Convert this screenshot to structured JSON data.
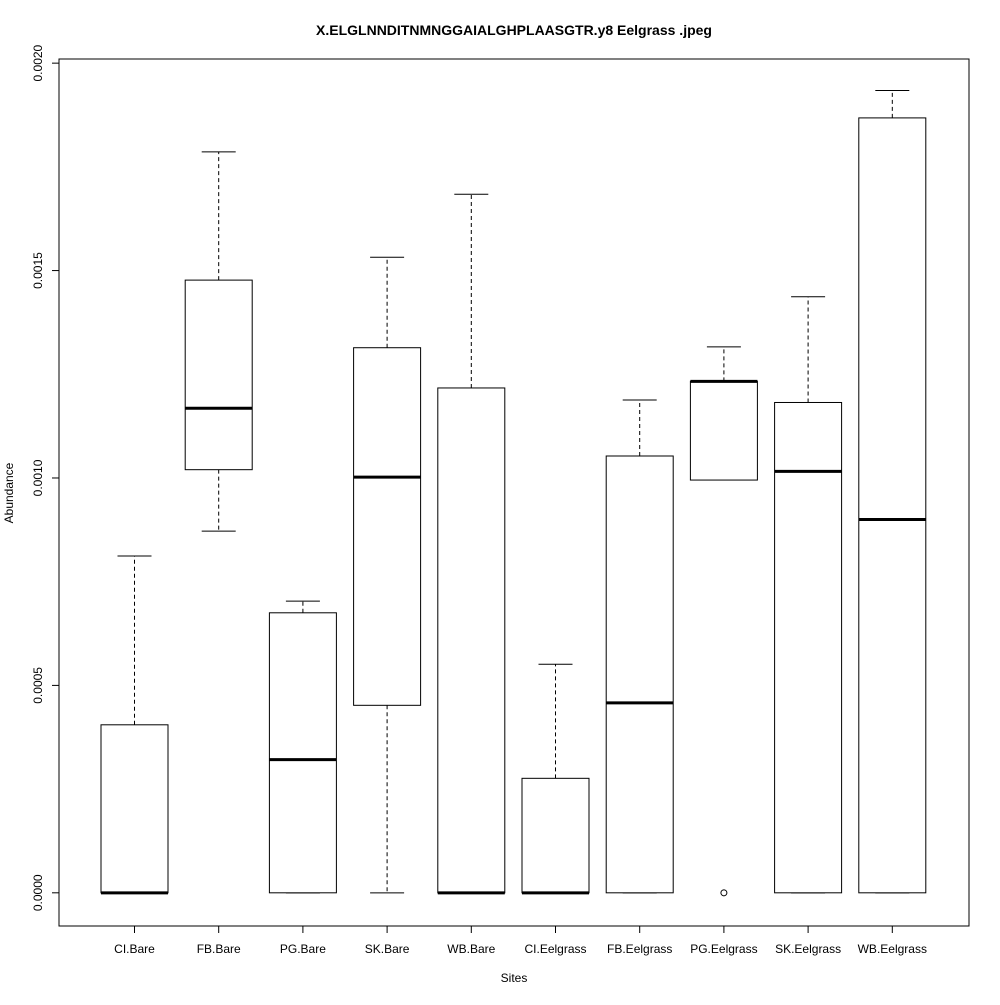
{
  "chart_data": {
    "type": "box",
    "title": "X.ELGLNNDITNMNGGAIALGHPLAASGTR.y8 Eelgrass .jpeg",
    "xlabel": "Sites",
    "ylabel": "Abundance",
    "ylim": [
      -8e-05,
      0.00201
    ],
    "yticks": [
      "0.0000",
      "0.0005",
      "0.0010",
      "0.0015",
      "0.0020"
    ],
    "ytick_values": [
      0,
      0.0005,
      0.001,
      0.0015,
      0.002
    ],
    "grid": false,
    "categories": [
      "CI.Bare",
      "FB.Bare",
      "PG.Bare",
      "SK.Bare",
      "WB.Bare",
      "CI.Eelgrass",
      "FB.Eelgrass",
      "PG.Eelgrass",
      "SK.Eelgrass",
      "WB.Eelgrass"
    ],
    "boxes": [
      {
        "min": 0.0,
        "q1": 0.0,
        "median": 0.0,
        "q3": 0.000405,
        "max": 0.000812,
        "outliers": []
      },
      {
        "min": 0.000872,
        "q1": 0.00102,
        "median": 0.001168,
        "q3": 0.001477,
        "max": 0.001786,
        "outliers": []
      },
      {
        "min": 0.0,
        "q1": 0.0,
        "median": 0.000321,
        "q3": 0.000675,
        "max": 0.000703,
        "outliers": []
      },
      {
        "min": 0.0,
        "q1": 0.000452,
        "median": 0.001002,
        "q3": 0.001314,
        "max": 0.001532,
        "outliers": []
      },
      {
        "min": 0.0,
        "q1": 0.0,
        "median": 0.0,
        "q3": 0.001217,
        "max": 0.001684,
        "outliers": []
      },
      {
        "min": 0.0,
        "q1": 0.0,
        "median": 0.0,
        "q3": 0.000276,
        "max": 0.000551,
        "outliers": []
      },
      {
        "min": 0.0,
        "q1": 0.0,
        "median": 0.000458,
        "q3": 0.001053,
        "max": 0.001188,
        "outliers": []
      },
      {
        "min": 0.000995,
        "q1": 0.000995,
        "median": 0.001233,
        "q3": 0.001233,
        "max": 0.001316,
        "outliers": [
          0.0
        ]
      },
      {
        "min": 0.0,
        "q1": 0.0,
        "median": 0.001016,
        "q3": 0.001182,
        "max": 0.001437,
        "outliers": []
      },
      {
        "min": 0.0,
        "q1": 0.0,
        "median": 0.0009,
        "q3": 0.001868,
        "max": 0.001934,
        "outliers": []
      }
    ]
  }
}
